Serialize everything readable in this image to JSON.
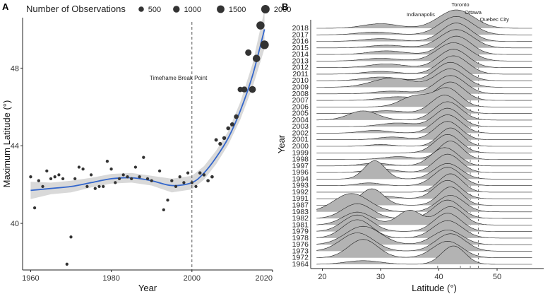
{
  "chart_data": [
    {
      "panel": "A",
      "type": "scatter",
      "xlabel": "Year",
      "ylabel": "Maximum Latitude (°)",
      "xlim": [
        1958,
        2020
      ],
      "ylim": [
        37.6,
        50.6
      ],
      "xticks": [
        1960,
        1980,
        2000,
        2020
      ],
      "xtick_labels": [
        "1960",
        "1980",
        "2000",
        "2020"
      ],
      "yticks": [
        40,
        44,
        48
      ],
      "yrange_labels": [
        "40",
        "44",
        "48"
      ],
      "legend_title": "Number of Observations",
      "legend": [
        {
          "label": "500",
          "size": 500
        },
        {
          "label": "1000",
          "size": 1000
        },
        {
          "label": "1500",
          "size": 1500
        },
        {
          "label": "2000",
          "size": 2000
        }
      ],
      "annotation": "Timeframe Break Point",
      "break_year": 2000,
      "colors": {
        "points": "#333333",
        "smooth": "#3366cc",
        "ribbon": "#d9d9d9"
      },
      "points": [
        {
          "x": 1960,
          "y": 42.4,
          "n": 30
        },
        {
          "x": 1961,
          "y": 40.8,
          "n": 30
        },
        {
          "x": 1962,
          "y": 42.2,
          "n": 30
        },
        {
          "x": 1963,
          "y": 41.9,
          "n": 30
        },
        {
          "x": 1964,
          "y": 42.7,
          "n": 30
        },
        {
          "x": 1965,
          "y": 42.3,
          "n": 30
        },
        {
          "x": 1966,
          "y": 42.4,
          "n": 30
        },
        {
          "x": 1967,
          "y": 42.5,
          "n": 30
        },
        {
          "x": 1968,
          "y": 42.3,
          "n": 30
        },
        {
          "x": 1969,
          "y": 37.9,
          "n": 30
        },
        {
          "x": 1970,
          "y": 39.3,
          "n": 30
        },
        {
          "x": 1971,
          "y": 42.3,
          "n": 30
        },
        {
          "x": 1972,
          "y": 42.9,
          "n": 30
        },
        {
          "x": 1973,
          "y": 42.8,
          "n": 30
        },
        {
          "x": 1974,
          "y": 41.9,
          "n": 30
        },
        {
          "x": 1975,
          "y": 42.5,
          "n": 30
        },
        {
          "x": 1976,
          "y": 41.8,
          "n": 30
        },
        {
          "x": 1977,
          "y": 41.9,
          "n": 30
        },
        {
          "x": 1978,
          "y": 41.9,
          "n": 30
        },
        {
          "x": 1979,
          "y": 43.2,
          "n": 30
        },
        {
          "x": 1980,
          "y": 42.8,
          "n": 30
        },
        {
          "x": 1981,
          "y": 42.1,
          "n": 30
        },
        {
          "x": 1982,
          "y": 42.3,
          "n": 30
        },
        {
          "x": 1983,
          "y": 42.5,
          "n": 30
        },
        {
          "x": 1984,
          "y": 42.4,
          "n": 30
        },
        {
          "x": 1985,
          "y": 42.3,
          "n": 30
        },
        {
          "x": 1986,
          "y": 42.9,
          "n": 30
        },
        {
          "x": 1987,
          "y": 42.4,
          "n": 30
        },
        {
          "x": 1988,
          "y": 43.4,
          "n": 30
        },
        {
          "x": 1989,
          "y": 42.3,
          "n": 30
        },
        {
          "x": 1990,
          "y": 42.2,
          "n": 30
        },
        {
          "x": 1992,
          "y": 42.7,
          "n": 30
        },
        {
          "x": 1993,
          "y": 40.7,
          "n": 30
        },
        {
          "x": 1994,
          "y": 41.2,
          "n": 30
        },
        {
          "x": 1995,
          "y": 42.2,
          "n": 30
        },
        {
          "x": 1996,
          "y": 41.9,
          "n": 30
        },
        {
          "x": 1997,
          "y": 42.4,
          "n": 30
        },
        {
          "x": 1998,
          "y": 42.1,
          "n": 30
        },
        {
          "x": 1999,
          "y": 42.6,
          "n": 30
        },
        {
          "x": 2000,
          "y": 42.1,
          "n": 30
        },
        {
          "x": 2001,
          "y": 41.9,
          "n": 30
        },
        {
          "x": 2002,
          "y": 42.6,
          "n": 50
        },
        {
          "x": 2003,
          "y": 42.5,
          "n": 50
        },
        {
          "x": 2004,
          "y": 42.2,
          "n": 60
        },
        {
          "x": 2005,
          "y": 42.4,
          "n": 60
        },
        {
          "x": 2006,
          "y": 44.3,
          "n": 80
        },
        {
          "x": 2007,
          "y": 44.1,
          "n": 100
        },
        {
          "x": 2008,
          "y": 44.4,
          "n": 120
        },
        {
          "x": 2009,
          "y": 44.9,
          "n": 150
        },
        {
          "x": 2010,
          "y": 45.1,
          "n": 200
        },
        {
          "x": 2011,
          "y": 45.5,
          "n": 300
        },
        {
          "x": 2012,
          "y": 46.9,
          "n": 500
        },
        {
          "x": 2013,
          "y": 46.9,
          "n": 700
        },
        {
          "x": 2014,
          "y": 48.8,
          "n": 900
        },
        {
          "x": 2015,
          "y": 46.9,
          "n": 1100
        },
        {
          "x": 2016,
          "y": 48.5,
          "n": 1400
        },
        {
          "x": 2017,
          "y": 50.2,
          "n": 1800
        },
        {
          "x": 2018,
          "y": 49.2,
          "n": 2100
        }
      ],
      "smooth": [
        {
          "x": 1960,
          "y": 41.7,
          "lo": 41.25,
          "hi": 42.15
        },
        {
          "x": 1965,
          "y": 41.8,
          "lo": 41.5,
          "hi": 42.1
        },
        {
          "x": 1970,
          "y": 41.9,
          "lo": 41.6,
          "hi": 42.2
        },
        {
          "x": 1975,
          "y": 42.1,
          "lo": 41.85,
          "hi": 42.35
        },
        {
          "x": 1980,
          "y": 42.3,
          "lo": 42.05,
          "hi": 42.55
        },
        {
          "x": 1985,
          "y": 42.35,
          "lo": 42.1,
          "hi": 42.6
        },
        {
          "x": 1990,
          "y": 42.2,
          "lo": 41.95,
          "hi": 42.45
        },
        {
          "x": 1995,
          "y": 41.95,
          "lo": 41.6,
          "hi": 42.3
        },
        {
          "x": 2000,
          "y": 42.1,
          "lo": 41.75,
          "hi": 42.45
        },
        {
          "x": 2003,
          "y": 42.6,
          "lo": 42.25,
          "hi": 42.95
        },
        {
          "x": 2006,
          "y": 43.4,
          "lo": 43.05,
          "hi": 43.75
        },
        {
          "x": 2009,
          "y": 44.4,
          "lo": 44.05,
          "hi": 44.75
        },
        {
          "x": 2012,
          "y": 45.8,
          "lo": 45.35,
          "hi": 46.25
        },
        {
          "x": 2015,
          "y": 47.6,
          "lo": 47.0,
          "hi": 48.2
        },
        {
          "x": 2018,
          "y": 50.0,
          "lo": 49.0,
          "hi": 51.0
        }
      ]
    },
    {
      "panel": "B",
      "type": "ridgeline",
      "xlabel": "Latitude (°)",
      "ylabel": "Year",
      "xlim": [
        18,
        58
      ],
      "xticks": [
        20,
        30,
        40,
        50
      ],
      "xtick_labels": [
        "20",
        "30",
        "40",
        "50"
      ],
      "colors": {
        "fill": "#b3b3b3",
        "line": "#222222",
        "ref": "#555555"
      },
      "reference_lines": [
        {
          "label": "Indianapolis",
          "lat": 39.8
        },
        {
          "label": "Toronto",
          "lat": 43.7
        },
        {
          "label": "Ottawa",
          "lat": 45.4
        },
        {
          "label": "Quebec City",
          "lat": 46.8
        }
      ],
      "years": [
        "1964",
        "1972",
        "1973",
        "1976",
        "1978",
        "1979",
        "1981",
        "1982",
        "1983",
        "1987",
        "1991",
        "1992",
        "1993",
        "1994",
        "1996",
        "1997",
        "1998",
        "1999",
        "2000",
        "2001",
        "2002",
        "2003",
        "2004",
        "2005",
        "2006",
        "2007",
        "2008",
        "2009",
        "2010",
        "2011",
        "2012",
        "2013",
        "2014",
        "2015",
        "2016",
        "2017",
        "2018"
      ],
      "ridges": [
        {
          "year": "1964",
          "comps": [
            [
              42.5,
              2.0,
              1.0
            ],
            [
              27,
              3.0,
              0.2
            ]
          ]
        },
        {
          "year": "1972",
          "comps": [
            [
              27,
              2.5,
              1.0
            ],
            [
              41.5,
              2.5,
              0.9
            ]
          ]
        },
        {
          "year": "1973",
          "comps": [
            [
              26,
              2.8,
              1.0
            ],
            [
              42,
              2.5,
              0.95
            ]
          ]
        },
        {
          "year": "1976",
          "comps": [
            [
              27,
              3.0,
              1.0
            ],
            [
              41.5,
              2.5,
              0.8
            ]
          ]
        },
        {
          "year": "1978",
          "comps": [
            [
              26,
              2.5,
              1.0
            ],
            [
              41.5,
              2.5,
              0.95
            ]
          ]
        },
        {
          "year": "1979",
          "comps": [
            [
              26,
              2.5,
              0.9
            ],
            [
              41.5,
              2.3,
              1.0
            ]
          ]
        },
        {
          "year": "1981",
          "comps": [
            [
              26,
              2.5,
              0.7
            ],
            [
              35,
              2.0,
              0.8
            ],
            [
              42,
              2.2,
              1.0
            ]
          ]
        },
        {
          "year": "1982",
          "comps": [
            [
              26,
              2.5,
              0.8
            ],
            [
              41.5,
              2.3,
              1.0
            ]
          ]
        },
        {
          "year": "1983",
          "comps": [
            [
              25,
              3.0,
              1.0
            ],
            [
              42,
              2.3,
              0.9
            ]
          ]
        },
        {
          "year": "1987",
          "comps": [
            [
              28.5,
              2.0,
              0.9
            ],
            [
              42,
              2.0,
              1.0
            ]
          ]
        },
        {
          "year": "1991",
          "comps": [
            [
              41.5,
              2.2,
              1.0
            ],
            [
              30,
              2.5,
              0.15
            ]
          ]
        },
        {
          "year": "1992",
          "comps": [
            [
              42,
              2.0,
              1.0
            ]
          ]
        },
        {
          "year": "1993",
          "comps": [
            [
              41.5,
              2.3,
              1.0
            ],
            [
              28,
              2.0,
              0.15
            ]
          ]
        },
        {
          "year": "1994",
          "comps": [
            [
              29,
              1.8,
              1.0
            ],
            [
              41.5,
              2.3,
              0.85
            ]
          ]
        },
        {
          "year": "1996",
          "comps": [
            [
              41.5,
              2.2,
              1.0
            ],
            [
              30,
              2.5,
              0.2
            ]
          ]
        },
        {
          "year": "1997",
          "comps": [
            [
              41,
              2.3,
              1.0
            ],
            [
              29,
              2.5,
              0.15
            ]
          ]
        },
        {
          "year": "1998",
          "comps": [
            [
              42,
              2.0,
              1.0
            ],
            [
              33,
              2.5,
              0.15
            ]
          ]
        },
        {
          "year": "1999",
          "comps": [
            [
              41.5,
              2.2,
              1.0
            ]
          ]
        },
        {
          "year": "2000",
          "comps": [
            [
              42,
              2.0,
              1.0
            ],
            [
              30,
              2.0,
              0.1
            ]
          ]
        },
        {
          "year": "2001",
          "comps": [
            [
              41.5,
              2.2,
              1.0
            ],
            [
              32,
              2.5,
              0.15
            ]
          ]
        },
        {
          "year": "2002",
          "comps": [
            [
              41.5,
              2.3,
              1.0
            ],
            [
              29,
              2.5,
              0.15
            ]
          ]
        },
        {
          "year": "2003",
          "comps": [
            [
              41.5,
              2.2,
              1.0
            ],
            [
              33,
              3.0,
              0.2
            ]
          ]
        },
        {
          "year": "2004",
          "comps": [
            [
              27,
              2.5,
              0.5
            ],
            [
              41.5,
              2.3,
              1.0
            ]
          ]
        },
        {
          "year": "2005",
          "comps": [
            [
              41,
              2.3,
              1.0
            ],
            [
              31,
              3.0,
              0.15
            ]
          ]
        },
        {
          "year": "2006",
          "comps": [
            [
              36,
              2.5,
              0.6
            ],
            [
              41.5,
              2.2,
              1.0
            ]
          ]
        },
        {
          "year": "2007",
          "comps": [
            [
              42,
              2.3,
              1.0
            ],
            [
              33,
              3.0,
              0.2
            ]
          ]
        },
        {
          "year": "2008",
          "comps": [
            [
              42,
              2.5,
              1.0
            ],
            [
              32,
              3.0,
              0.15
            ]
          ]
        },
        {
          "year": "2009",
          "comps": [
            [
              32,
              3.5,
              0.5
            ],
            [
              42,
              2.5,
              1.0
            ]
          ]
        },
        {
          "year": "2010",
          "comps": [
            [
              42,
              2.5,
              1.0
            ],
            [
              30,
              3.0,
              0.2
            ]
          ]
        },
        {
          "year": "2011",
          "comps": [
            [
              42.5,
              2.5,
              1.0
            ],
            [
              30,
              3.0,
              0.15
            ]
          ]
        },
        {
          "year": "2012",
          "comps": [
            [
              42.5,
              2.5,
              1.0
            ],
            [
              31,
              3.0,
              0.2
            ]
          ]
        },
        {
          "year": "2013",
          "comps": [
            [
              42.5,
              2.8,
              1.0
            ],
            [
              30,
              3.0,
              0.15
            ]
          ]
        },
        {
          "year": "2014",
          "comps": [
            [
              43,
              2.5,
              1.0
            ],
            [
              31,
              3.0,
              0.2
            ]
          ]
        },
        {
          "year": "2015",
          "comps": [
            [
              43,
              2.8,
              1.0
            ],
            [
              31,
              3.0,
              0.15
            ]
          ]
        },
        {
          "year": "2016",
          "comps": [
            [
              43,
              2.5,
              1.0
            ],
            [
              30,
              3.0,
              0.15
            ]
          ]
        },
        {
          "year": "2017",
          "comps": [
            [
              43,
              2.8,
              1.0
            ],
            [
              29,
              3.0,
              0.15
            ]
          ]
        },
        {
          "year": "2018",
          "comps": [
            [
              43,
              3.0,
              1.0
            ],
            [
              30,
              3.0,
              0.25
            ]
          ]
        }
      ]
    }
  ],
  "panels": {
    "a_letter": "A",
    "b_letter": "B"
  }
}
